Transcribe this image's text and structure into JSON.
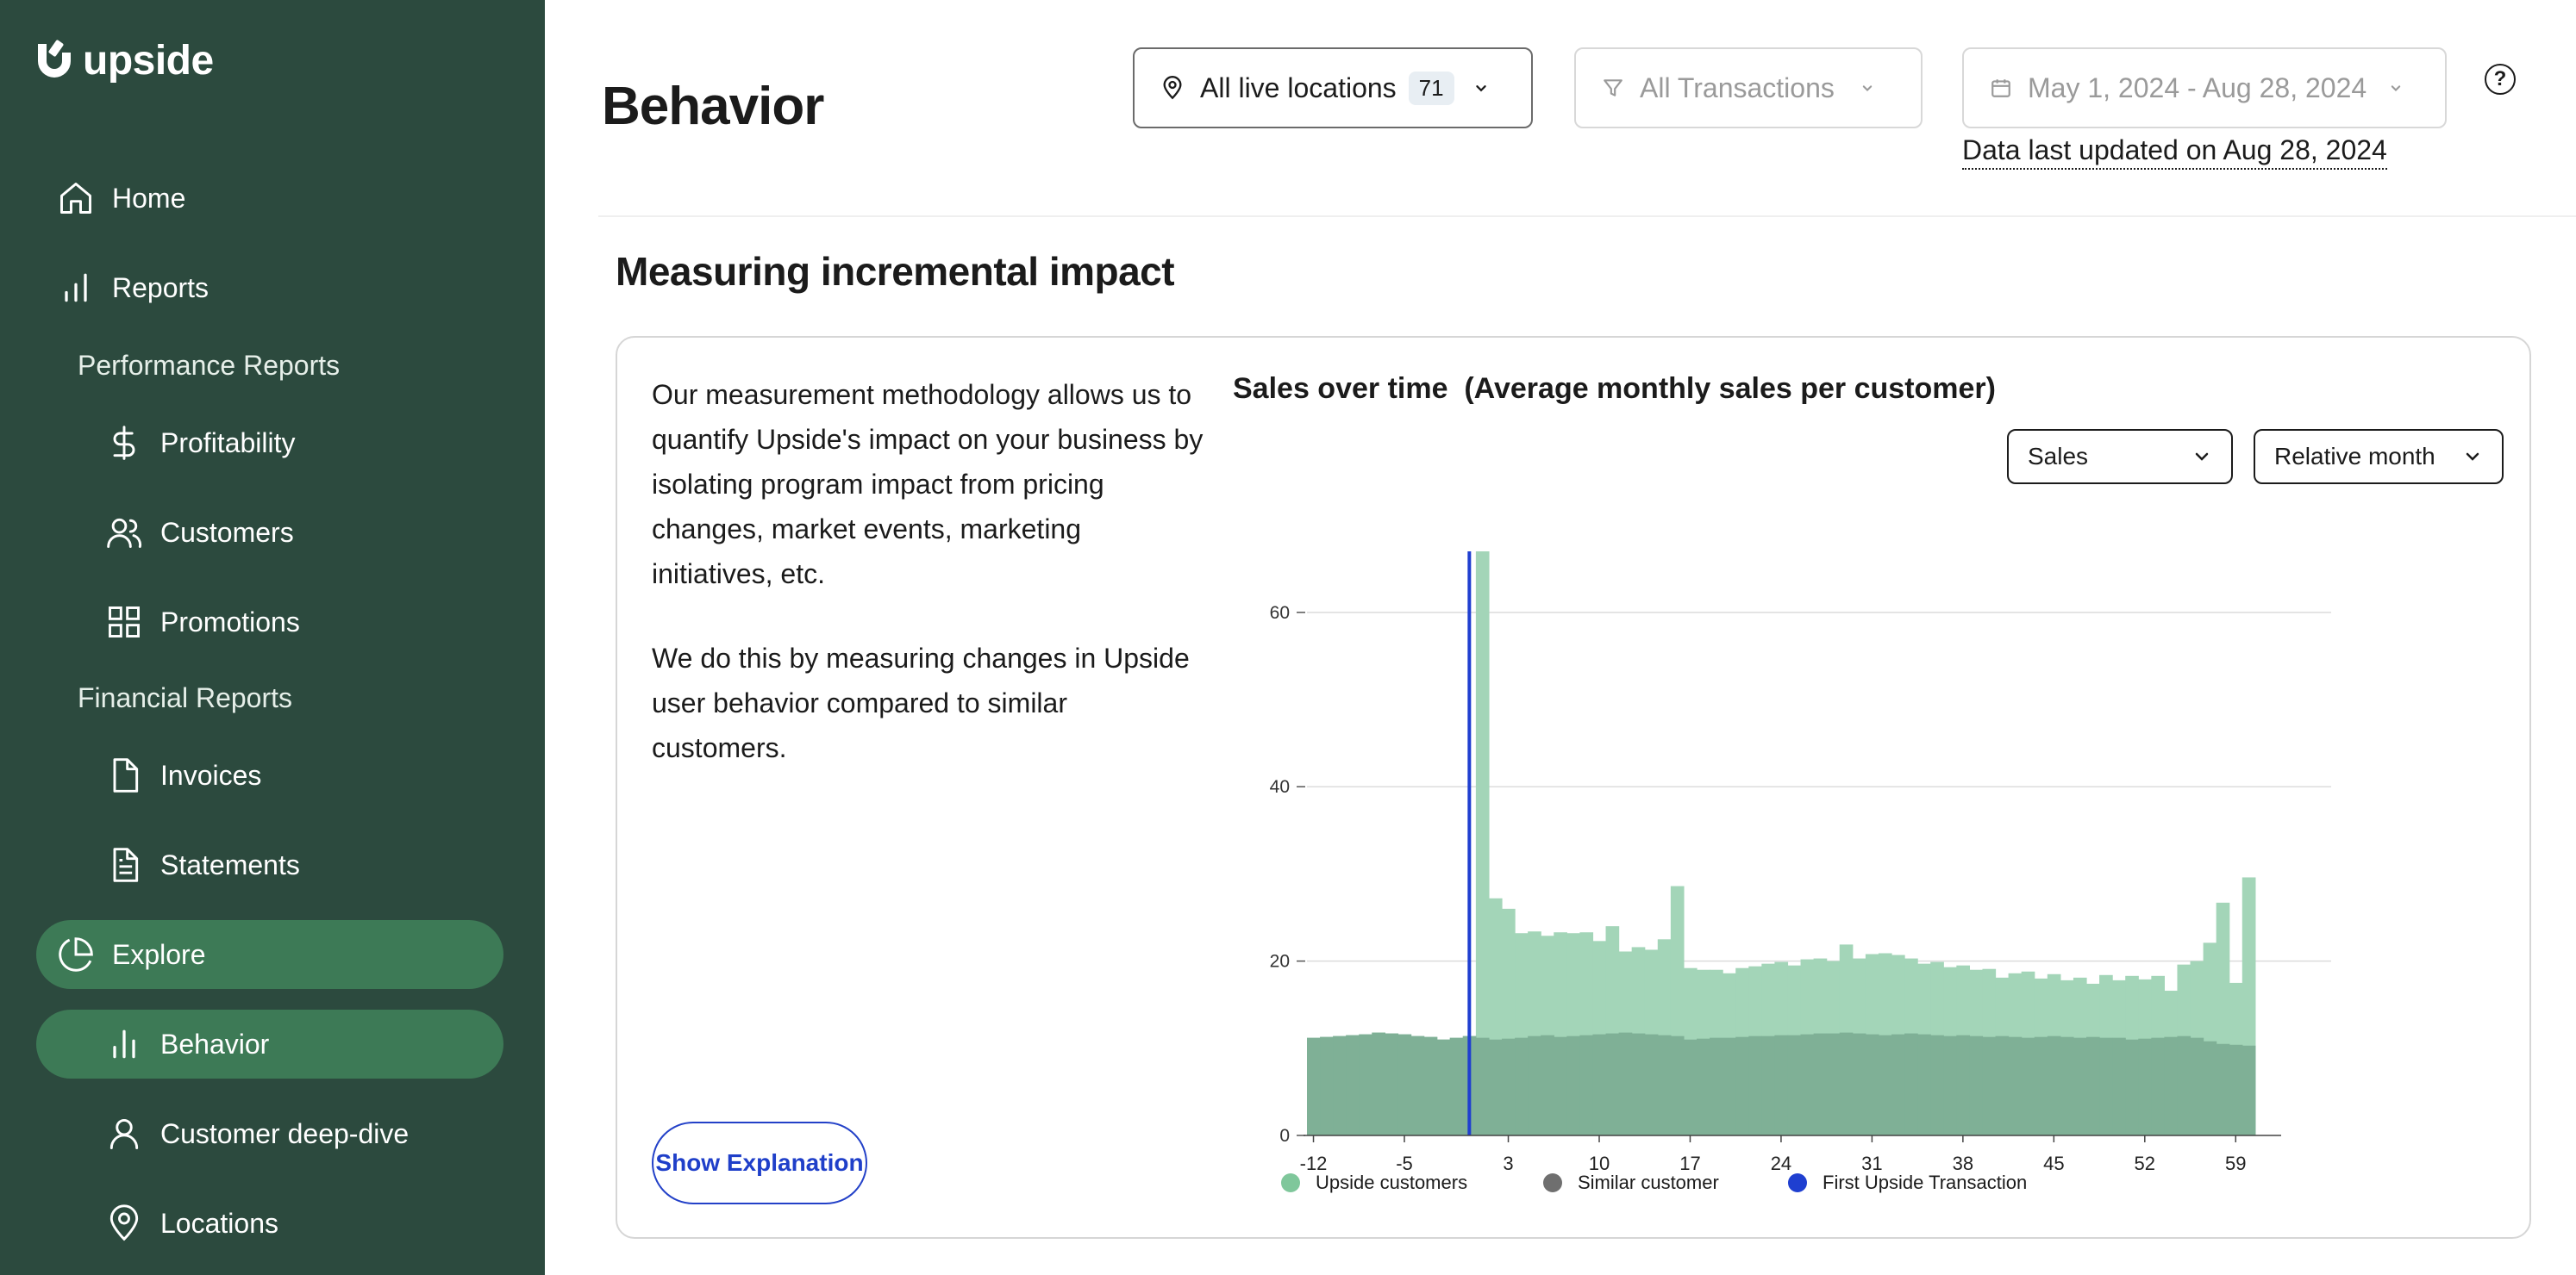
{
  "brand": {
    "name": "upside"
  },
  "sidebar": {
    "home": "Home",
    "reports": "Reports",
    "performance_reports": "Performance Reports",
    "profitability": "Profitability",
    "customers": "Customers",
    "promotions": "Promotions",
    "financial_reports": "Financial Reports",
    "invoices": "Invoices",
    "statements": "Statements",
    "explore": "Explore",
    "behavior": "Behavior",
    "customer_deep_dive": "Customer deep-dive",
    "locations": "Locations"
  },
  "header": {
    "title": "Behavior",
    "locations_label": "All live locations",
    "locations_count": "71",
    "transactions_label": "All Transactions",
    "date_range": "May 1, 2024 - Aug 28, 2024",
    "updated_text": "Data last updated on Aug 28, 2024",
    "help": "?"
  },
  "section": {
    "title": "Measuring incremental impact",
    "description_1": "Our measurement methodology allows us to quantify Upside's impact on your business by isolating program impact from pricing changes, market events, marketing initiatives, etc.",
    "description_2": "We do this by measuring changes in Upside user behavior compared to similar customers.",
    "explain_button": "Show Explanation"
  },
  "chart": {
    "title": "Sales over time  (Average monthly sales per customer)",
    "metric_select": "Sales",
    "period_select": "Relative month"
  },
  "colors": {
    "sidebar_bg": "#2c4a3e",
    "active_nav": "#3d7a56",
    "upside_series": "#a3d5b8",
    "similar_series": "#7fb096",
    "marker": "#1f3fd0",
    "link": "#1f3fc9"
  },
  "chart_data": {
    "type": "bar",
    "title": "Sales over time  (Average monthly sales per customer)",
    "xlabel": "",
    "ylabel": "",
    "ylim": [
      0,
      67
    ],
    "yticks": [
      0,
      20,
      40,
      60
    ],
    "xticks": [
      "-12",
      "-5",
      "3",
      "10",
      "17",
      "24",
      "31",
      "38",
      "45",
      "52",
      "59"
    ],
    "xrange": [
      -12,
      62
    ],
    "series": [
      {
        "name": "Upside customers",
        "color": "#a3d5b8",
        "x_start": -12,
        "values": [
          11.2,
          11.3,
          11.4,
          11.5,
          11.6,
          11.8,
          11.7,
          11.6,
          11.4,
          11.3,
          11.0,
          11.2,
          11.4,
          67,
          27.2,
          26.0,
          23.2,
          23.4,
          22.9,
          23.3,
          23.2,
          23.3,
          22.3,
          24.0,
          21.1,
          21.6,
          21.3,
          22.5,
          28.6,
          19.2,
          19.0,
          19.0,
          18.6,
          19.2,
          19.4,
          19.7,
          19.9,
          19.5,
          20.2,
          20.3,
          20.0,
          21.9,
          20.3,
          20.8,
          20.9,
          20.7,
          20.3,
          19.7,
          19.9,
          19.3,
          19.5,
          19.0,
          19.1,
          18.1,
          18.6,
          18.8,
          18.0,
          18.5,
          17.8,
          18.1,
          17.4,
          18.4,
          17.8,
          18.3,
          17.9,
          18.3,
          16.6,
          19.6,
          20.0,
          22.1,
          26.7,
          17.5,
          29.6
        ]
      },
      {
        "name": "Similar customer",
        "color": "#7fb096",
        "x_start": -12,
        "values": [
          11.2,
          11.3,
          11.4,
          11.5,
          11.6,
          11.8,
          11.7,
          11.6,
          11.4,
          11.3,
          11.0,
          11.2,
          11.4,
          11.2,
          11.0,
          11.1,
          11.2,
          11.4,
          11.5,
          11.3,
          11.4,
          11.5,
          11.6,
          11.7,
          11.8,
          11.7,
          11.6,
          11.5,
          11.4,
          11.0,
          11.1,
          11.2,
          11.2,
          11.3,
          11.4,
          11.4,
          11.5,
          11.5,
          11.6,
          11.7,
          11.7,
          11.8,
          11.7,
          11.6,
          11.5,
          11.6,
          11.7,
          11.6,
          11.5,
          11.4,
          11.5,
          11.4,
          11.3,
          11.4,
          11.3,
          11.2,
          11.3,
          11.4,
          11.3,
          11.2,
          11.3,
          11.2,
          11.2,
          11.0,
          11.1,
          11.2,
          11.3,
          11.4,
          11.2,
          10.8,
          10.5,
          10.4,
          10.3
        ]
      }
    ],
    "marker": {
      "name": "First Upside Transaction",
      "x": 0.5,
      "color": "#1f3fd0"
    },
    "legend": [
      "Upside customers",
      "Similar customer",
      "First Upside Transaction"
    ],
    "legend_position": "bottom",
    "grid": true
  }
}
